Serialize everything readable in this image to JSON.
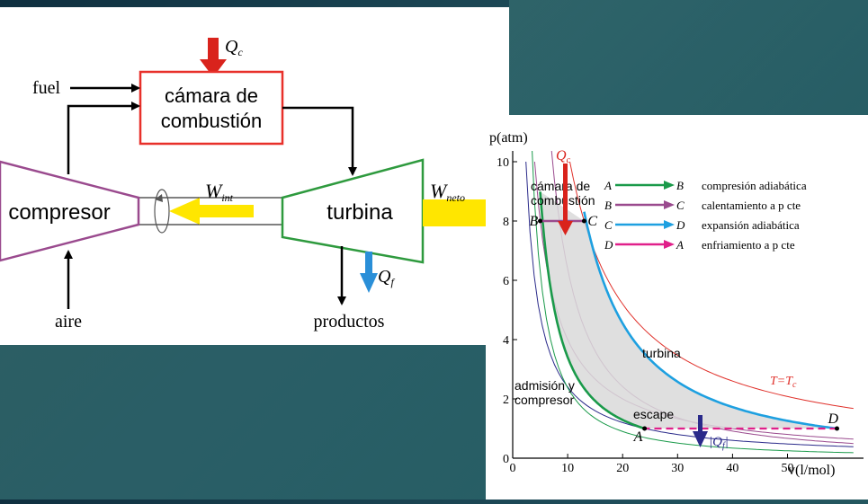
{
  "schematic": {
    "chamber_label_1": "cámara de",
    "chamber_label_2": "combustión",
    "q_c": "Q",
    "q_c_sub": "c",
    "fuel": "fuel",
    "compressor": "compresor",
    "turbine": "turbina",
    "w_int": "W",
    "w_int_sub": "int",
    "w_net": "W",
    "w_net_sub": "neto",
    "q_f": "Q",
    "q_f_sub": "f",
    "air": "aire",
    "products": "productos",
    "colors": {
      "chamber": "#e8302a",
      "compressor": "#9a4a8e",
      "turbine": "#2e9a3e",
      "work_arrow": "#ffe600",
      "heat_in": "#d9231c",
      "heat_out": "#2a8fd8"
    }
  },
  "chart_data": {
    "type": "line",
    "xlabel": "v(l/mol)",
    "ylabel": "p(atm)",
    "xlim": [
      0,
      60
    ],
    "ylim": [
      0,
      10
    ],
    "x_ticks": [
      0,
      10,
      20,
      30,
      40,
      50
    ],
    "y_ticks": [
      0,
      2,
      4,
      6,
      8,
      10
    ],
    "points": [
      {
        "name": "A",
        "v": 24,
        "p": 1
      },
      {
        "name": "B",
        "v": 5,
        "p": 8
      },
      {
        "name": "C",
        "v": 13,
        "p": 8
      },
      {
        "name": "D",
        "v": 59,
        "p": 1
      }
    ],
    "legend": [
      {
        "from": "A",
        "to": "B",
        "label": "compresión adiabática",
        "color": "#1a9a4a"
      },
      {
        "from": "B",
        "to": "C",
        "label": "calentamiento a p cte",
        "color": "#9a4a8e"
      },
      {
        "from": "C",
        "to": "D",
        "label": "expansión adiabática",
        "color": "#1ea0e0"
      },
      {
        "from": "D",
        "to": "A",
        "label": "enfriamiento a p cte",
        "color": "#e0208a"
      }
    ],
    "annotations": {
      "chamber_1": "cámara de",
      "chamber_2": "combustión",
      "turbine": "turbina",
      "admission_1": "admisión y",
      "admission_2": "compresor",
      "exhaust": "escape",
      "isotherm": "T=T",
      "isotherm_sub": "c",
      "q_in": "Q",
      "q_in_sub": "c",
      "q_out": "|Q",
      "q_out_sub": "f",
      "q_out_end": "|"
    }
  }
}
